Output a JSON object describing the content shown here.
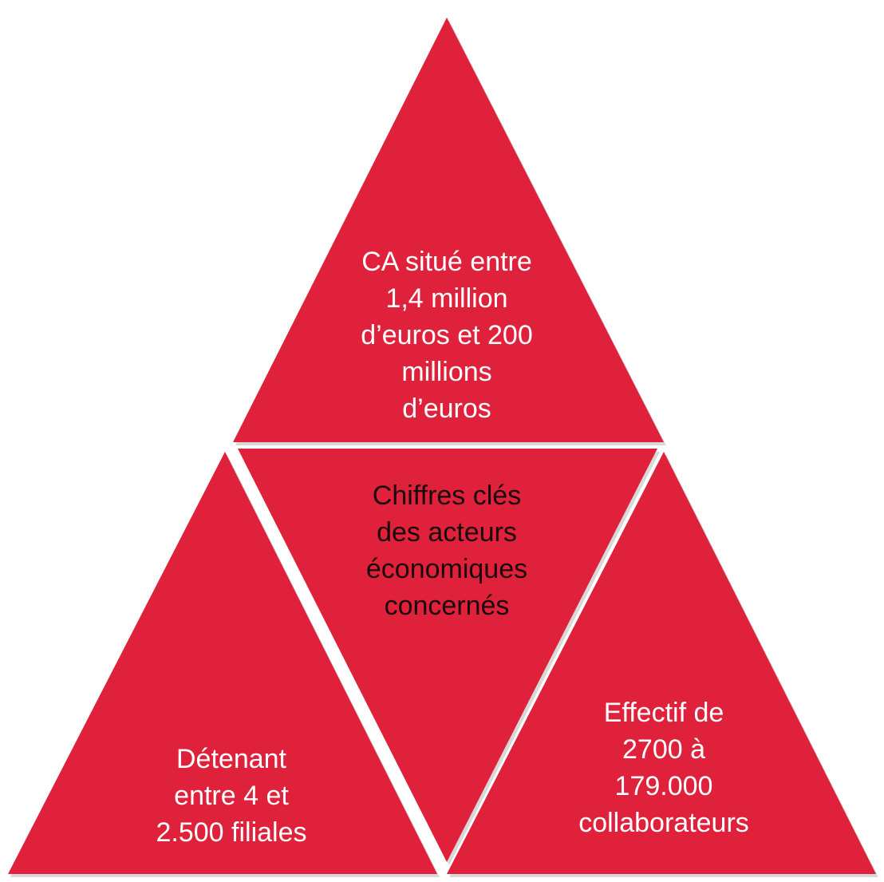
{
  "diagram": {
    "accent_color": "#e0213b",
    "top": {
      "text": "CA situé entre\n1,4 million\nd’euros et 200\nmillions\nd’euros"
    },
    "center": {
      "text": "Chiffres clés\ndes acteurs\néconomiques\nconcernés"
    },
    "left": {
      "text": "Détenant\nentre 4 et\n2.500 filiales"
    },
    "right": {
      "text": "Effectif de\n2700 à\n179.000\ncollaborateurs"
    }
  }
}
